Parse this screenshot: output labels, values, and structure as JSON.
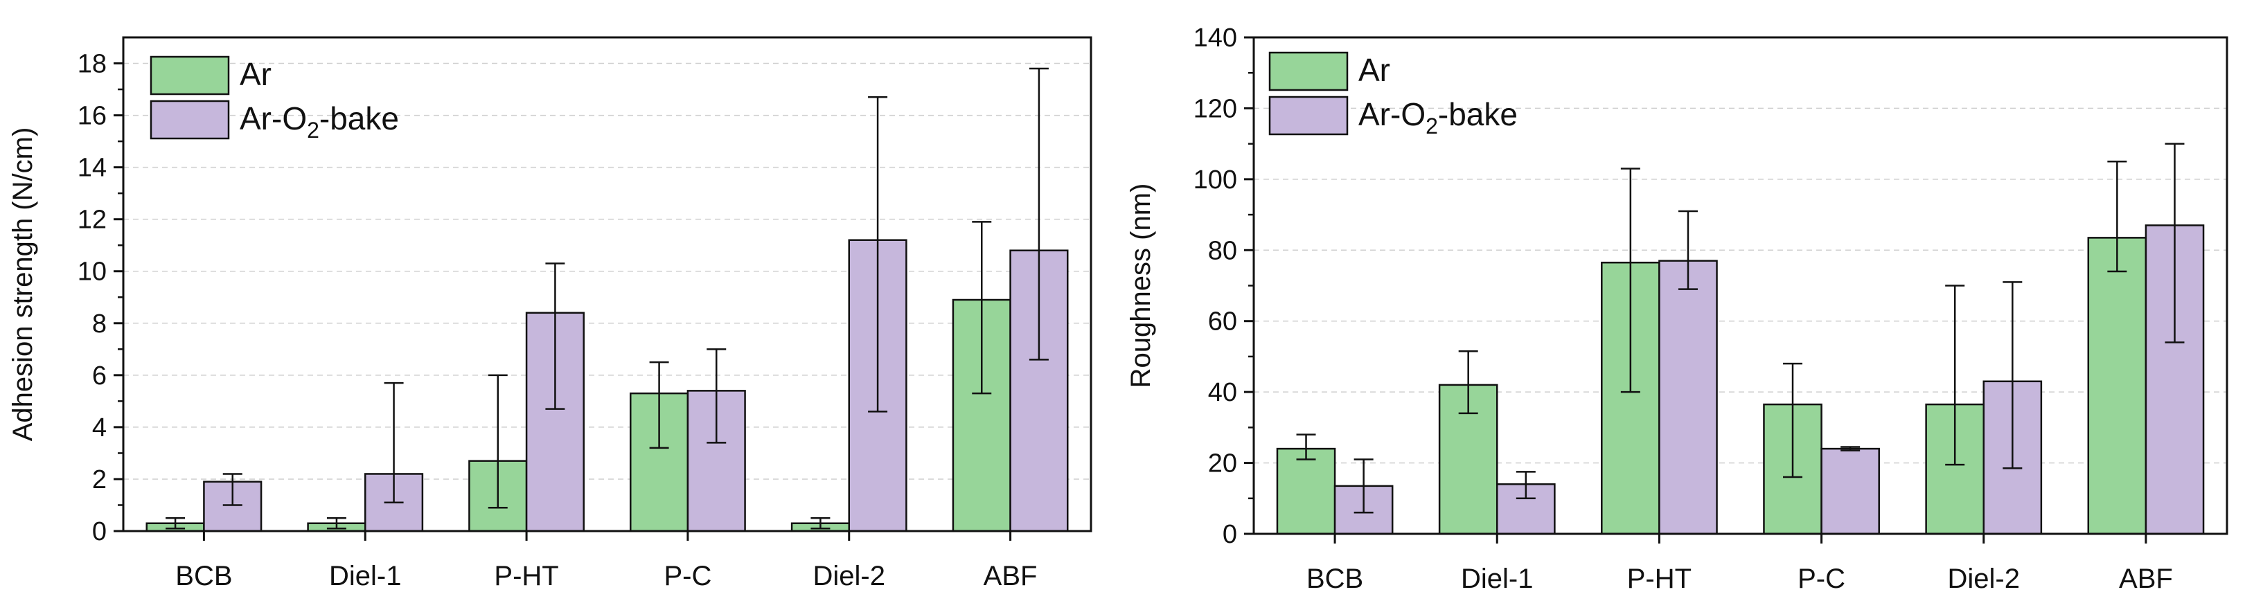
{
  "colors": {
    "ar_fill": "#97d599",
    "ar_o2_fill": "#c6b7dc",
    "axis": "#111111",
    "grid": "#cfcfcf"
  },
  "chart_data": [
    {
      "type": "bar",
      "title": "",
      "xlabel": "",
      "ylabel": "Adhesion strength (N/cm)",
      "ylim": [
        0,
        19
      ],
      "yticks": [
        0,
        2,
        4,
        6,
        8,
        10,
        12,
        14,
        16,
        18
      ],
      "grid": "horizontal dashed",
      "legend": {
        "position": "top-left",
        "entries": [
          "Ar",
          "Ar-O2-bake"
        ]
      },
      "categories": [
        "BCB",
        "Diel-1",
        "P-HT",
        "P-C",
        "Diel-2",
        "ABF"
      ],
      "series": [
        {
          "name": "Ar",
          "legend_main": "Ar",
          "legend_sub": "",
          "legend_tail": "",
          "values": [
            0.3,
            0.3,
            2.7,
            5.3,
            0.3,
            8.9
          ],
          "err_low": [
            0.1,
            0.1,
            0.9,
            3.2,
            0.1,
            5.3
          ],
          "err_high": [
            0.5,
            0.5,
            6.0,
            6.5,
            0.5,
            11.9
          ]
        },
        {
          "name": "Ar-O2-bake",
          "legend_main": "Ar-O",
          "legend_sub": "2",
          "legend_tail": "-bake",
          "values": [
            1.9,
            2.2,
            8.4,
            5.4,
            11.2,
            10.8
          ],
          "err_low": [
            1.0,
            1.1,
            4.7,
            3.4,
            4.6,
            6.6
          ],
          "err_high": [
            2.2,
            5.7,
            10.3,
            7.0,
            16.7,
            17.8
          ]
        }
      ]
    },
    {
      "type": "bar",
      "title": "",
      "xlabel": "",
      "ylabel": "Roughness (nm)",
      "ylim": [
        0,
        140
      ],
      "yticks": [
        0,
        20,
        40,
        60,
        80,
        100,
        120,
        140
      ],
      "grid": "horizontal dashed",
      "legend": {
        "position": "top-left",
        "entries": [
          "Ar",
          "Ar-O2-bake"
        ]
      },
      "categories": [
        "BCB",
        "Diel-1",
        "P-HT",
        "P-C",
        "Diel-2",
        "ABF"
      ],
      "series": [
        {
          "name": "Ar",
          "legend_main": "Ar",
          "legend_sub": "",
          "legend_tail": "",
          "values": [
            24,
            42,
            76.5,
            36.5,
            36.5,
            83.5
          ],
          "err_low": [
            21,
            34,
            40,
            16,
            19.5,
            74
          ],
          "err_high": [
            28,
            51.5,
            103,
            48,
            70,
            105
          ]
        },
        {
          "name": "Ar-O2-bake",
          "legend_main": "Ar-O",
          "legend_sub": "2",
          "legend_tail": "-bake",
          "values": [
            13.5,
            14,
            77,
            24,
            43,
            87
          ],
          "err_low": [
            6,
            10,
            69,
            23.5,
            18.5,
            54
          ],
          "err_high": [
            21,
            17.5,
            91,
            24.5,
            71,
            110
          ]
        }
      ]
    }
  ]
}
